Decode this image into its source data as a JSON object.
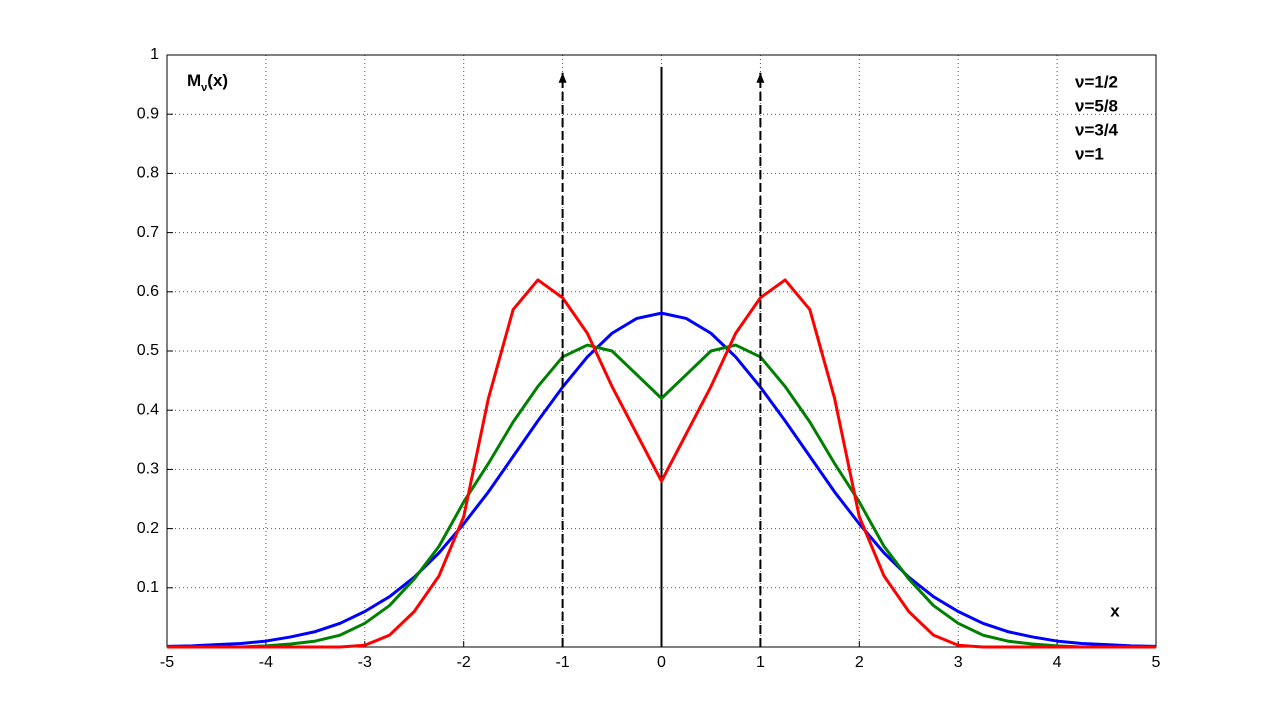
{
  "chart_data": {
    "type": "line",
    "ylabel": {
      "main": "M",
      "sub": "ν",
      "rest": "(x)"
    },
    "xlabel": "x",
    "x": [
      -5,
      -4.75,
      -4.5,
      -4.25,
      -4,
      -3.75,
      -3.5,
      -3.25,
      -3,
      -2.75,
      -2.5,
      -2.25,
      -2,
      -1.75,
      -1.5,
      -1.25,
      -1,
      -0.75,
      -0.5,
      -0.25,
      0,
      0.25,
      0.5,
      0.75,
      1,
      1.25,
      1.5,
      1.75,
      2,
      2.25,
      2.5,
      2.75,
      3,
      3.25,
      3.5,
      3.75,
      4,
      4.25,
      4.5,
      4.75,
      5
    ],
    "series": [
      {
        "name": "ν=1/2",
        "color": "#0000ff",
        "style": "solid",
        "values": [
          0.001,
          0.002,
          0.004,
          0.006,
          0.01,
          0.017,
          0.026,
          0.04,
          0.06,
          0.085,
          0.118,
          0.159,
          0.208,
          0.262,
          0.322,
          0.382,
          0.439,
          0.49,
          0.53,
          0.555,
          0.564,
          0.555,
          0.53,
          0.49,
          0.439,
          0.382,
          0.322,
          0.262,
          0.208,
          0.159,
          0.118,
          0.085,
          0.06,
          0.04,
          0.026,
          0.017,
          0.01,
          0.006,
          0.004,
          0.002,
          0.001
        ]
      },
      {
        "name": "ν=5/8",
        "color": "#008000",
        "style": "solid",
        "values": [
          0,
          0,
          0,
          0,
          0.002,
          0.005,
          0.01,
          0.02,
          0.04,
          0.07,
          0.115,
          0.17,
          0.245,
          0.31,
          0.38,
          0.44,
          0.49,
          0.51,
          0.5,
          0.46,
          0.42,
          0.46,
          0.5,
          0.51,
          0.49,
          0.44,
          0.38,
          0.31,
          0.245,
          0.17,
          0.115,
          0.07,
          0.04,
          0.02,
          0.01,
          0.005,
          0.002,
          0,
          0,
          0,
          0
        ]
      },
      {
        "name": "ν=3/4",
        "color": "#ff0000",
        "style": "solid",
        "values": [
          0,
          0,
          0,
          0,
          0,
          0,
          0,
          0,
          0.003,
          0.02,
          0.06,
          0.12,
          0.22,
          0.42,
          0.57,
          0.62,
          0.59,
          0.53,
          0.44,
          0.36,
          0.28,
          0.36,
          0.44,
          0.53,
          0.59,
          0.62,
          0.57,
          0.42,
          0.22,
          0.12,
          0.06,
          0.02,
          0.003,
          0,
          0,
          0,
          0,
          0,
          0,
          0,
          0
        ]
      },
      {
        "name": "ν=1",
        "color": "#000000",
        "style": "impulse",
        "x": [
          -1,
          1
        ],
        "values": [
          0.97,
          0.97
        ]
      }
    ],
    "vline": {
      "x": 0,
      "y": 0.98
    },
    "xlim": [
      -5,
      5
    ],
    "ylim": [
      0,
      1
    ],
    "xticks": [
      -5,
      -4,
      -3,
      -2,
      -1,
      0,
      1,
      2,
      3,
      4,
      5
    ],
    "yticks": [
      0.1,
      0.2,
      0.3,
      0.4,
      0.5,
      0.6,
      0.7,
      0.8,
      0.9,
      1
    ],
    "grid": true,
    "legend": "upper right"
  }
}
